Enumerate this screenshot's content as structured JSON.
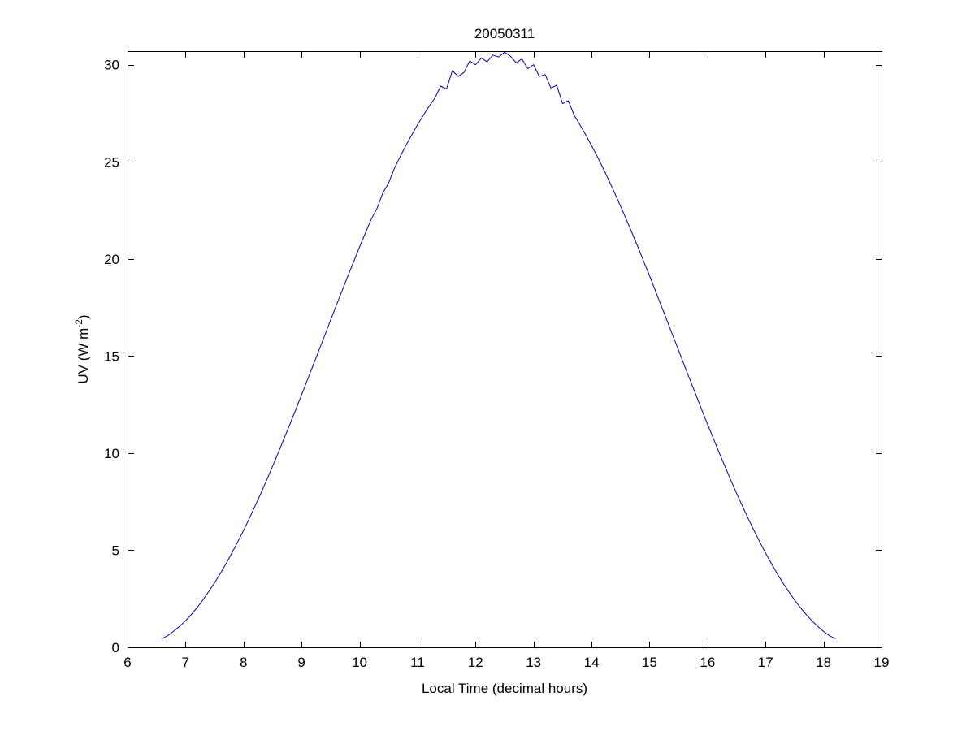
{
  "chart_data": {
    "type": "line",
    "title": "20050311",
    "xlabel": "Local Time (decimal hours)",
    "ylabel": {
      "prefix": "UV (W m",
      "sup": "-2",
      "suffix": ")"
    },
    "xlim": [
      6,
      19
    ],
    "ylim": [
      0,
      30.7
    ],
    "xticks": [
      6,
      7,
      8,
      9,
      10,
      11,
      12,
      13,
      14,
      15,
      16,
      17,
      18,
      19
    ],
    "yticks": [
      0,
      5,
      10,
      15,
      20,
      25,
      30
    ],
    "grid": false,
    "legend": null,
    "line_color": "#0000AA",
    "axis_color": "#000000",
    "points": [
      [
        6.6,
        0.45
      ],
      [
        6.7,
        0.62
      ],
      [
        6.8,
        0.84
      ],
      [
        6.9,
        1.08
      ],
      [
        7.0,
        1.37
      ],
      [
        7.1,
        1.69
      ],
      [
        7.2,
        2.05
      ],
      [
        7.3,
        2.44
      ],
      [
        7.4,
        2.87
      ],
      [
        7.5,
        3.32
      ],
      [
        7.6,
        3.8
      ],
      [
        7.7,
        4.32
      ],
      [
        7.8,
        4.86
      ],
      [
        7.9,
        5.43
      ],
      [
        8.0,
        6.02
      ],
      [
        8.1,
        6.64
      ],
      [
        8.2,
        7.28
      ],
      [
        8.3,
        7.94
      ],
      [
        8.4,
        8.62
      ],
      [
        8.5,
        9.32
      ],
      [
        8.6,
        10.03
      ],
      [
        8.7,
        10.76
      ],
      [
        8.8,
        11.49
      ],
      [
        8.9,
        12.24
      ],
      [
        9.0,
        13.0
      ],
      [
        9.1,
        13.76
      ],
      [
        9.2,
        14.52
      ],
      [
        9.3,
        15.3
      ],
      [
        9.4,
        16.06
      ],
      [
        9.5,
        16.84
      ],
      [
        9.6,
        17.61
      ],
      [
        9.7,
        18.37
      ],
      [
        9.8,
        19.13
      ],
      [
        9.9,
        19.87
      ],
      [
        10.0,
        20.61
      ],
      [
        10.1,
        21.33
      ],
      [
        10.2,
        22.03
      ],
      [
        10.3,
        22.6
      ],
      [
        10.4,
        23.39
      ],
      [
        10.5,
        23.9
      ],
      [
        10.6,
        24.66
      ],
      [
        10.7,
        25.27
      ],
      [
        10.8,
        25.84
      ],
      [
        10.9,
        26.39
      ],
      [
        11.0,
        26.91
      ],
      [
        11.1,
        27.4
      ],
      [
        11.2,
        27.86
      ],
      [
        11.3,
        28.29
      ],
      [
        11.4,
        28.9
      ],
      [
        11.5,
        28.75
      ],
      [
        11.6,
        29.7
      ],
      [
        11.7,
        29.4
      ],
      [
        11.8,
        29.6
      ],
      [
        11.9,
        30.2
      ],
      [
        12.0,
        30.0
      ],
      [
        12.1,
        30.35
      ],
      [
        12.2,
        30.15
      ],
      [
        12.3,
        30.5
      ],
      [
        12.4,
        30.4
      ],
      [
        12.5,
        30.65
      ],
      [
        12.6,
        30.45
      ],
      [
        12.7,
        30.1
      ],
      [
        12.8,
        30.3
      ],
      [
        12.9,
        29.8
      ],
      [
        13.0,
        30.0
      ],
      [
        13.1,
        29.4
      ],
      [
        13.2,
        29.5
      ],
      [
        13.3,
        28.8
      ],
      [
        13.4,
        28.95
      ],
      [
        13.5,
        28.0
      ],
      [
        13.6,
        28.15
      ],
      [
        13.7,
        27.4
      ],
      [
        13.8,
        26.91
      ],
      [
        13.9,
        26.39
      ],
      [
        14.0,
        25.84
      ],
      [
        14.1,
        25.27
      ],
      [
        14.2,
        24.66
      ],
      [
        14.3,
        24.04
      ],
      [
        14.4,
        23.39
      ],
      [
        14.5,
        22.72
      ],
      [
        14.6,
        22.03
      ],
      [
        14.7,
        21.33
      ],
      [
        14.8,
        20.61
      ],
      [
        14.9,
        19.87
      ],
      [
        15.0,
        19.13
      ],
      [
        15.1,
        18.37
      ],
      [
        15.2,
        17.61
      ],
      [
        15.3,
        16.84
      ],
      [
        15.4,
        16.06
      ],
      [
        15.5,
        15.3
      ],
      [
        15.6,
        14.52
      ],
      [
        15.7,
        13.76
      ],
      [
        15.8,
        13.0
      ],
      [
        15.9,
        12.24
      ],
      [
        16.0,
        11.49
      ],
      [
        16.1,
        10.76
      ],
      [
        16.2,
        10.03
      ],
      [
        16.3,
        9.32
      ],
      [
        16.4,
        8.62
      ],
      [
        16.5,
        7.94
      ],
      [
        16.6,
        7.28
      ],
      [
        16.7,
        6.64
      ],
      [
        16.8,
        6.02
      ],
      [
        16.9,
        5.43
      ],
      [
        17.0,
        4.86
      ],
      [
        17.1,
        4.32
      ],
      [
        17.2,
        3.8
      ],
      [
        17.3,
        3.32
      ],
      [
        17.4,
        2.87
      ],
      [
        17.5,
        2.44
      ],
      [
        17.6,
        2.05
      ],
      [
        17.7,
        1.69
      ],
      [
        17.8,
        1.37
      ],
      [
        17.9,
        1.08
      ],
      [
        18.0,
        0.82
      ],
      [
        18.1,
        0.6
      ],
      [
        18.2,
        0.45
      ]
    ]
  }
}
